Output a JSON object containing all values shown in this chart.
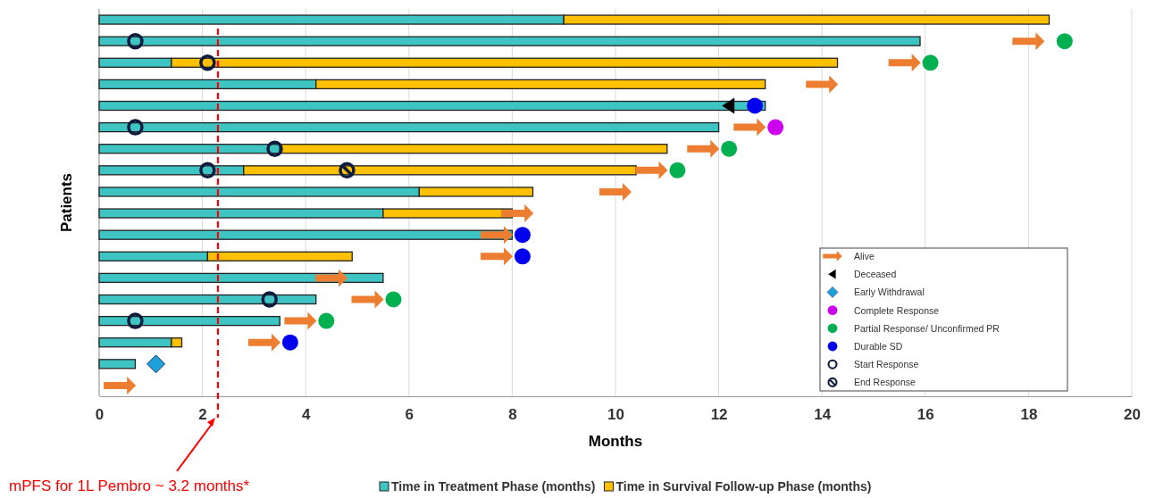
{
  "chart_data": {
    "type": "bar",
    "orientation": "horizontal",
    "stacked": true,
    "xlabel": "Months",
    "ylabel": "Patients",
    "categories": [
      null,
      null,
      null,
      null,
      null,
      null,
      null,
      null,
      null,
      null,
      null,
      null,
      null,
      null,
      null,
      null,
      null,
      null
    ],
    "xlim": [
      0,
      20
    ],
    "xticks": [
      0,
      2,
      4,
      6,
      8,
      10,
      12,
      14,
      16,
      18,
      20
    ],
    "grid": "x",
    "legend": "bottom right",
    "ref_lines": [
      {
        "axis": "x",
        "value": 2.3,
        "label": "mPFS for 1L Pembro ~ 3.2 months*",
        "color": "#ff0000",
        "line_style": "dashed"
      }
    ],
    "series": [
      {
        "name": "Time in Treatment Phase (months)",
        "color": "#3fc4c4",
        "values": [
          9.0,
          15.9,
          1.4,
          4.2,
          12.9,
          12.0,
          3.5,
          2.8,
          6.2,
          5.5,
          8.0,
          2.1,
          5.5,
          4.2,
          3.5,
          1.4,
          0.7,
          null
        ]
      },
      {
        "name": "Time in Survival Follow-up Phase (months)",
        "color": "#ffc000",
        "values": [
          9.4,
          null,
          12.9,
          8.7,
          null,
          null,
          7.5,
          7.6,
          2.2,
          2.5,
          null,
          2.8,
          null,
          null,
          null,
          0.2,
          null,
          null
        ]
      },
      {
        "type": "scatter",
        "name": "Alive",
        "color": "#ed7d31",
        "values": [
          null,
          18.0,
          15.6,
          14.0,
          null,
          12.6,
          11.7,
          10.7,
          10.0,
          8.1,
          7.7,
          7.7,
          4.5,
          5.2,
          3.9,
          3.2,
          null,
          0.4
        ]
      },
      {
        "type": "scatter",
        "name": "Deceased",
        "marker": "triangle",
        "color": "#000000",
        "values": [
          null,
          null,
          null,
          null,
          12.2,
          null,
          null,
          null,
          null,
          null,
          null,
          null,
          null,
          null,
          null,
          null,
          null,
          null
        ]
      },
      {
        "type": "scatter",
        "name": "Early Withdrawal",
        "marker": "diamond",
        "color": "#1fa0d8",
        "values": [
          null,
          null,
          null,
          null,
          null,
          null,
          null,
          null,
          null,
          null,
          null,
          null,
          null,
          null,
          null,
          null,
          1.1,
          null
        ]
      },
      {
        "type": "scatter",
        "name": "Complete Response",
        "marker": "circle",
        "color": "#cc00ee",
        "values": [
          null,
          null,
          null,
          null,
          null,
          13.1,
          null,
          null,
          null,
          null,
          null,
          null,
          null,
          null,
          null,
          null,
          null,
          null
        ]
      },
      {
        "type": "scatter",
        "name": "Partial Response/ Unconfirmed PR",
        "marker": "circle",
        "color": "#00b050",
        "values": [
          null,
          18.7,
          16.1,
          null,
          null,
          null,
          12.2,
          11.2,
          null,
          null,
          null,
          null,
          null,
          5.7,
          4.4,
          null,
          null,
          null
        ]
      },
      {
        "type": "scatter",
        "name": "Durable SD",
        "marker": "circle",
        "color": "#0000ee",
        "values": [
          null,
          null,
          null,
          null,
          12.7,
          null,
          null,
          null,
          null,
          null,
          8.2,
          8.2,
          null,
          null,
          null,
          3.7,
          null,
          null
        ]
      },
      {
        "type": "scatter",
        "name": "Start Response",
        "marker": "circle",
        "color": "#0d1b3e",
        "values": [
          null,
          0.7,
          2.1,
          null,
          null,
          0.7,
          3.4,
          2.1,
          null,
          null,
          null,
          null,
          null,
          3.3,
          0.7,
          null,
          null,
          null
        ]
      },
      {
        "type": "scatter",
        "name": "End Response",
        "marker": "cross",
        "color": "#0d1b3e",
        "values": [
          null,
          null,
          null,
          null,
          null,
          null,
          null,
          4.8,
          null,
          null,
          null,
          null,
          null,
          null,
          null,
          null,
          null,
          null
        ]
      }
    ]
  }
}
